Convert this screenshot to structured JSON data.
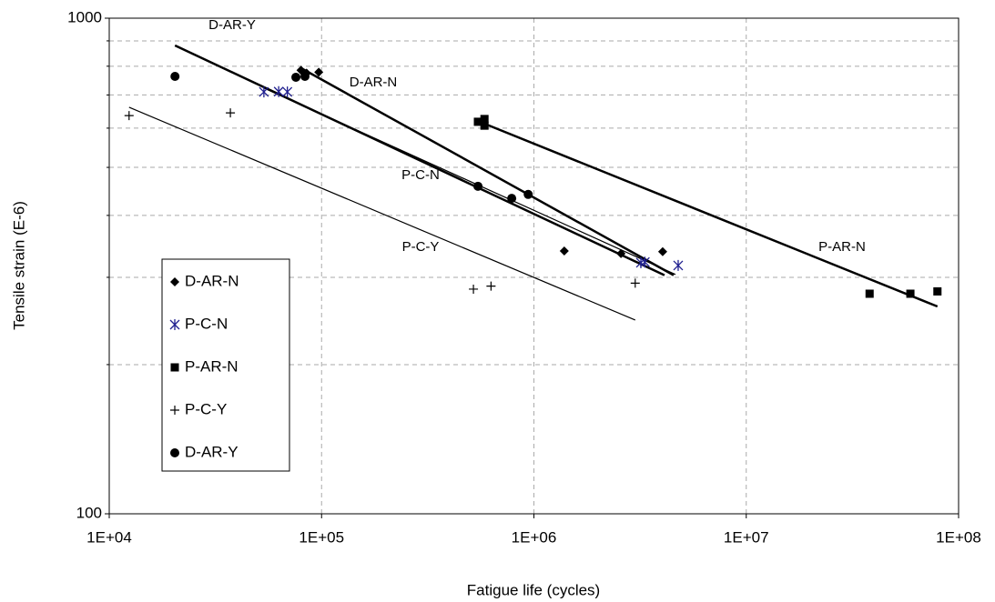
{
  "chart_data": {
    "type": "scatter",
    "log_x": true,
    "log_y": true,
    "grid": true,
    "x_label": "Fatigue life (cycles)",
    "y_label": "Tensile strain (E-6)",
    "xlim": [
      10000,
      100000000
    ],
    "ylim": [
      100,
      1000
    ],
    "xticks": [
      {
        "value": 10000,
        "label": "1E+04"
      },
      {
        "value": 100000,
        "label": "1E+05"
      },
      {
        "value": 1000000,
        "label": "1E+06"
      },
      {
        "value": 10000000,
        "label": "1E+07"
      },
      {
        "value": 100000000,
        "label": "1E+08"
      }
    ],
    "yticks": [
      100,
      1000
    ],
    "minor_yticks": [
      200,
      300,
      400,
      500,
      600,
      700,
      800,
      900
    ],
    "legend": "left",
    "series": [
      {
        "name": "D-AR-N",
        "color": "#000000",
        "marker": "diamond",
        "x": [
          80000,
          85000,
          97000,
          1390000,
          2570000,
          4040000
        ],
        "values": [
          785,
          775,
          778,
          339,
          335,
          338
        ]
      },
      {
        "name": "P-C-N",
        "color": "#1f1f8f",
        "marker": "asterisk",
        "x": [
          53500,
          62800,
          69000,
          3190000,
          3330000,
          4780000
        ],
        "values": [
          710,
          711,
          710,
          321,
          322,
          317
        ]
      },
      {
        "name": "P-AR-N",
        "color": "#000000",
        "marker": "square",
        "x": [
          545000,
          585000,
          585000,
          38100000,
          59300000,
          79500000
        ],
        "values": [
          618,
          626,
          607,
          278,
          278,
          281
        ]
      },
      {
        "name": "P-C-Y",
        "color": "#000000",
        "marker": "plus",
        "x": [
          12400,
          37200,
          519000,
          628000,
          3000000
        ],
        "values": [
          636,
          644,
          284,
          288,
          292
        ]
      },
      {
        "name": "D-AR-Y",
        "color": "#000000",
        "marker": "circle",
        "x": [
          20400,
          75700,
          83500,
          545000,
          786000,
          940000
        ],
        "values": [
          763,
          760,
          763,
          458,
          433,
          441
        ]
      }
    ],
    "trendlines": [
      {
        "label": "D-AR-Y",
        "width": 2.5,
        "x": [
          20400,
          4120000
        ],
        "values": [
          881,
          303
        ]
      },
      {
        "label": "D-AR-N",
        "width": 2.5,
        "x": [
          80000,
          4550000
        ],
        "values": [
          793,
          303
        ]
      },
      {
        "label": "P-C-N",
        "width": 1.2,
        "x": [
          53500,
          4640000
        ],
        "values": [
          723,
          304
        ]
      },
      {
        "label": "P-C-Y",
        "width": 1.2,
        "x": [
          12400,
          3000000
        ],
        "values": [
          661,
          246
        ]
      },
      {
        "label": "P-AR-N",
        "width": 2.5,
        "x": [
          545000,
          79500000
        ],
        "values": [
          620,
          262
        ]
      }
    ]
  }
}
